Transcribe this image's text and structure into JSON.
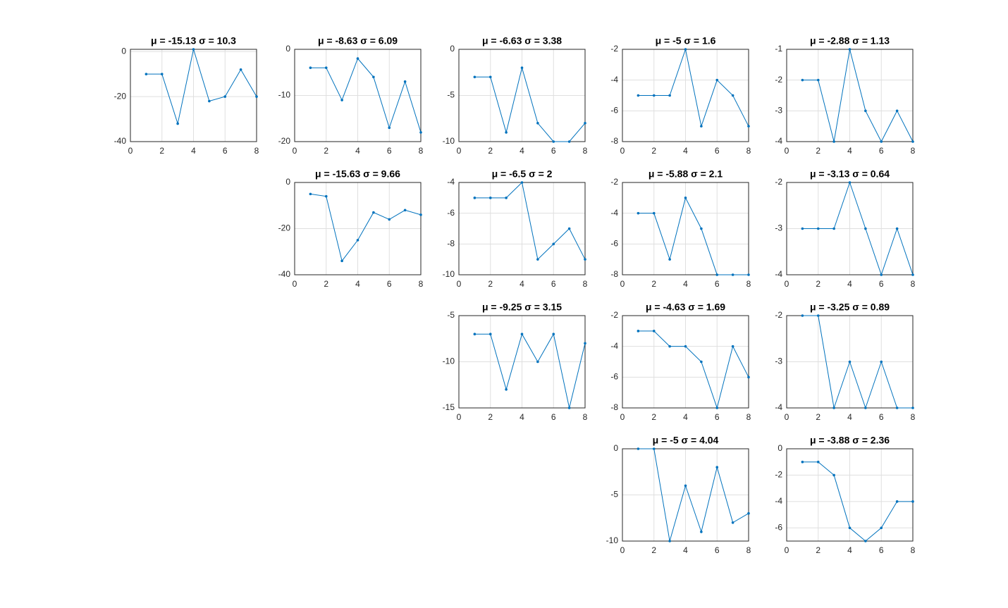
{
  "chart_data": [
    {
      "type": "line",
      "title": "μ = -15.13  σ = 10.3",
      "x": [
        1,
        2,
        3,
        4,
        5,
        6,
        7,
        8
      ],
      "values": [
        -10,
        -10,
        -32,
        1,
        -22,
        -20,
        -8,
        -20
      ],
      "color": "#0072bd",
      "xlim": [
        0,
        8
      ],
      "xticks": [
        0,
        2,
        4,
        6,
        8
      ],
      "ylim": [
        -40,
        1
      ],
      "yticks": [
        -40,
        -20,
        0
      ],
      "grid": true
    },
    {
      "type": "line",
      "title": "μ = -8.63  σ = 6.09",
      "x": [
        1,
        2,
        3,
        4,
        5,
        6,
        7,
        8
      ],
      "values": [
        -4,
        -4,
        -11,
        -2,
        -6,
        -17,
        -7,
        -18
      ],
      "color": "#0072bd",
      "xlim": [
        0,
        8
      ],
      "xticks": [
        0,
        2,
        4,
        6,
        8
      ],
      "ylim": [
        -20,
        0
      ],
      "yticks": [
        -20,
        -10,
        0
      ],
      "grid": true
    },
    {
      "type": "line",
      "title": "μ = -6.63  σ = 3.38",
      "x": [
        1,
        2,
        3,
        4,
        5,
        6,
        7,
        8
      ],
      "values": [
        -3,
        -3,
        -9,
        -2,
        -8,
        -10,
        -10,
        -8
      ],
      "color": "#0072bd",
      "xlim": [
        0,
        8
      ],
      "xticks": [
        0,
        2,
        4,
        6,
        8
      ],
      "ylim": [
        -10,
        0
      ],
      "yticks": [
        -10,
        -5,
        0
      ],
      "grid": true
    },
    {
      "type": "line",
      "title": "μ = -5  σ = 1.6",
      "x": [
        1,
        2,
        3,
        4,
        5,
        6,
        7,
        8
      ],
      "values": [
        -5,
        -5,
        -5,
        -2,
        -7,
        -4,
        -5,
        -7
      ],
      "color": "#0072bd",
      "xlim": [
        0,
        8
      ],
      "xticks": [
        0,
        2,
        4,
        6,
        8
      ],
      "ylim": [
        -8,
        -2
      ],
      "yticks": [
        -8,
        -6,
        -4,
        -2
      ],
      "grid": true
    },
    {
      "type": "line",
      "title": "μ = -2.88  σ = 1.13",
      "x": [
        1,
        2,
        3,
        4,
        5,
        6,
        7,
        8
      ],
      "values": [
        -2,
        -2,
        -4,
        -1,
        -3,
        -4,
        -3,
        -4
      ],
      "color": "#0072bd",
      "xlim": [
        0,
        8
      ],
      "xticks": [
        0,
        2,
        4,
        6,
        8
      ],
      "ylim": [
        -4,
        -1
      ],
      "yticks": [
        -4,
        -3,
        -2,
        -1
      ],
      "grid": true
    },
    {
      "type": "line",
      "title": "μ = -15.63  σ = 9.66",
      "x": [
        1,
        2,
        3,
        4,
        5,
        6,
        7,
        8
      ],
      "values": [
        -5,
        -6,
        -34,
        -25,
        -13,
        -16,
        -12,
        -14
      ],
      "color": "#0072bd",
      "xlim": [
        0,
        8
      ],
      "xticks": [
        0,
        2,
        4,
        6,
        8
      ],
      "ylim": [
        -40,
        0
      ],
      "yticks": [
        -40,
        -20,
        0
      ],
      "grid": true
    },
    {
      "type": "line",
      "title": "μ = -6.5  σ = 2",
      "x": [
        1,
        2,
        3,
        4,
        5,
        6,
        7,
        8
      ],
      "values": [
        -5,
        -5,
        -5,
        -4,
        -9,
        -8,
        -7,
        -9
      ],
      "color": "#0072bd",
      "xlim": [
        0,
        8
      ],
      "xticks": [
        0,
        2,
        4,
        6,
        8
      ],
      "ylim": [
        -10,
        -4
      ],
      "yticks": [
        -10,
        -8,
        -6,
        -4
      ],
      "grid": true
    },
    {
      "type": "line",
      "title": "μ = -5.88  σ = 2.1",
      "x": [
        1,
        2,
        3,
        4,
        5,
        6,
        7,
        8
      ],
      "values": [
        -4,
        -4,
        -7,
        -3,
        -5,
        -8,
        -8,
        -8
      ],
      "color": "#0072bd",
      "xlim": [
        0,
        8
      ],
      "xticks": [
        0,
        2,
        4,
        6,
        8
      ],
      "ylim": [
        -8,
        -2
      ],
      "yticks": [
        -8,
        -6,
        -4,
        -2
      ],
      "grid": true
    },
    {
      "type": "line",
      "title": "μ = -3.13  σ = 0.64",
      "x": [
        1,
        2,
        3,
        4,
        5,
        6,
        7,
        8
      ],
      "values": [
        -3,
        -3,
        -3,
        -2,
        -3,
        -4,
        -3,
        -4
      ],
      "color": "#0072bd",
      "xlim": [
        0,
        8
      ],
      "xticks": [
        0,
        2,
        4,
        6,
        8
      ],
      "ylim": [
        -4,
        -2
      ],
      "yticks": [
        -4,
        -3,
        -2
      ],
      "grid": true
    },
    {
      "type": "line",
      "title": "μ = -9.25  σ = 3.15",
      "x": [
        1,
        2,
        3,
        4,
        5,
        6,
        7,
        8
      ],
      "values": [
        -7,
        -7,
        -13,
        -7,
        -10,
        -7,
        -15,
        -8
      ],
      "color": "#0072bd",
      "xlim": [
        0,
        8
      ],
      "xticks": [
        0,
        2,
        4,
        6,
        8
      ],
      "ylim": [
        -15,
        -5
      ],
      "yticks": [
        -15,
        -10,
        -5
      ],
      "grid": true
    },
    {
      "type": "line",
      "title": "μ = -4.63  σ = 1.69",
      "x": [
        1,
        2,
        3,
        4,
        5,
        6,
        7,
        8
      ],
      "values": [
        -3,
        -3,
        -4,
        -4,
        -5,
        -8,
        -4,
        -6
      ],
      "color": "#0072bd",
      "xlim": [
        0,
        8
      ],
      "xticks": [
        0,
        2,
        4,
        6,
        8
      ],
      "ylim": [
        -8,
        -2
      ],
      "yticks": [
        -8,
        -6,
        -4,
        -2
      ],
      "grid": true
    },
    {
      "type": "line",
      "title": "μ = -3.25  σ = 0.89",
      "x": [
        1,
        2,
        3,
        4,
        5,
        6,
        7,
        8
      ],
      "values": [
        -2,
        -2,
        -4,
        -3,
        -4,
        -3,
        -4,
        -4
      ],
      "color": "#0072bd",
      "xlim": [
        0,
        8
      ],
      "xticks": [
        0,
        2,
        4,
        6,
        8
      ],
      "ylim": [
        -4,
        -2
      ],
      "yticks": [
        -4,
        -3,
        -2
      ],
      "grid": true
    },
    {
      "type": "line",
      "title": "μ = -5  σ = 4.04",
      "x": [
        1,
        2,
        3,
        4,
        5,
        6,
        7,
        8
      ],
      "values": [
        0,
        0,
        -10,
        -4,
        -9,
        -2,
        -8,
        -7
      ],
      "color": "#0072bd",
      "xlim": [
        0,
        8
      ],
      "xticks": [
        0,
        2,
        4,
        6,
        8
      ],
      "ylim": [
        -10,
        0
      ],
      "yticks": [
        -10,
        -5,
        0
      ],
      "grid": true
    },
    {
      "type": "line",
      "title": "μ = -3.88  σ = 2.36",
      "x": [
        1,
        2,
        3,
        4,
        5,
        6,
        7,
        8
      ],
      "values": [
        -1,
        -1,
        -2,
        -6,
        -7,
        -6,
        -4,
        -4
      ],
      "color": "#0072bd",
      "xlim": [
        0,
        8
      ],
      "xticks": [
        0,
        2,
        4,
        6,
        8
      ],
      "ylim": [
        -7,
        0
      ],
      "yticks": [
        -6,
        -4,
        -2,
        0
      ],
      "grid": true
    }
  ]
}
